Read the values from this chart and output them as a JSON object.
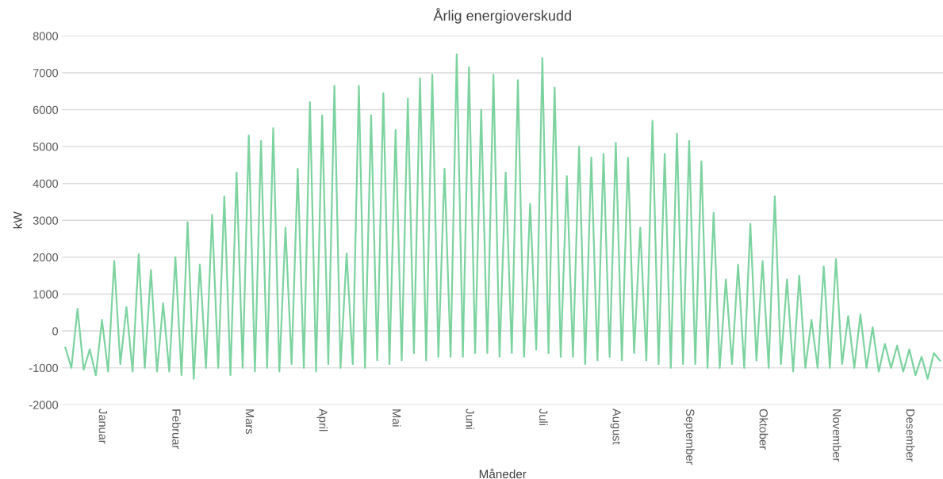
{
  "chart_data": {
    "type": "line",
    "title": "Årlig energioverskudd",
    "xlabel": "Måneder",
    "ylabel": "kW",
    "ylim": [
      -2000,
      8000
    ],
    "yticks": [
      -2000,
      -1000,
      0,
      1000,
      2000,
      3000,
      4000,
      5000,
      6000,
      7000,
      8000
    ],
    "grid": "y",
    "marker": "none",
    "line_style": "solid",
    "categories": [
      null,
      null,
      null,
      null,
      null,
      null,
      "Januar",
      null,
      null,
      null,
      null,
      null,
      null,
      null,
      null,
      null,
      null,
      null,
      "Februar",
      null,
      null,
      null,
      null,
      null,
      null,
      null,
      null,
      null,
      null,
      null,
      "Mars",
      null,
      null,
      null,
      null,
      null,
      null,
      null,
      null,
      null,
      null,
      null,
      "April",
      null,
      null,
      null,
      null,
      null,
      null,
      null,
      null,
      null,
      null,
      null,
      "Mai",
      null,
      null,
      null,
      null,
      null,
      null,
      null,
      null,
      null,
      null,
      null,
      "Juni",
      null,
      null,
      null,
      null,
      null,
      null,
      null,
      null,
      null,
      null,
      null,
      "Juli",
      null,
      null,
      null,
      null,
      null,
      null,
      null,
      null,
      null,
      null,
      null,
      "August",
      null,
      null,
      null,
      null,
      null,
      null,
      null,
      null,
      null,
      null,
      null,
      "September",
      null,
      null,
      null,
      null,
      null,
      null,
      null,
      null,
      null,
      null,
      null,
      "Oktober",
      null,
      null,
      null,
      null,
      null,
      null,
      null,
      null,
      null,
      null,
      null,
      "November",
      null,
      null,
      null,
      null,
      null,
      null,
      null,
      null,
      null,
      null,
      null,
      "Desember",
      null,
      null,
      null,
      null,
      null
    ],
    "series": [
      {
        "color": "#7dd3a0",
        "values": [
          -450,
          -1000,
          600,
          -1050,
          -500,
          -1200,
          300,
          -1100,
          1900,
          -900,
          650,
          -1100,
          2080,
          -1000,
          1650,
          -1100,
          750,
          -1100,
          2000,
          -1200,
          2950,
          -1300,
          1800,
          -1000,
          3150,
          -1000,
          3650,
          -1200,
          4300,
          -1000,
          5300,
          -1100,
          5150,
          -1000,
          5500,
          -1100,
          2800,
          -900,
          4400,
          -1000,
          6200,
          -1100,
          5850,
          -900,
          6650,
          -1000,
          2100,
          -900,
          6650,
          -1000,
          5850,
          -800,
          6450,
          -900,
          5450,
          -800,
          6300,
          -600,
          6850,
          -800,
          6950,
          -700,
          4400,
          -700,
          7500,
          -700,
          7150,
          -600,
          6000,
          -600,
          6950,
          -700,
          4300,
          -600,
          6800,
          -700,
          3450,
          -500,
          7400,
          -600,
          6600,
          -700,
          4200,
          -700,
          5000,
          -900,
          4700,
          -800,
          4800,
          -700,
          5100,
          -800,
          4700,
          -600,
          2800,
          -800,
          5700,
          -900,
          4800,
          -1000,
          5350,
          -900,
          5150,
          -900,
          4600,
          -1000,
          3200,
          -1000,
          1400,
          -900,
          1800,
          -1000,
          2900,
          -800,
          1900,
          -1000,
          3650,
          -900,
          1400,
          -1100,
          1500,
          -1000,
          300,
          -1000,
          1750,
          -1000,
          1950,
          -900,
          400,
          -1000,
          450,
          -1000,
          100,
          -1100,
          -350,
          -1000,
          -400,
          -1100,
          -500,
          -1200,
          -700,
          -1300,
          -600,
          -800
        ]
      }
    ]
  }
}
